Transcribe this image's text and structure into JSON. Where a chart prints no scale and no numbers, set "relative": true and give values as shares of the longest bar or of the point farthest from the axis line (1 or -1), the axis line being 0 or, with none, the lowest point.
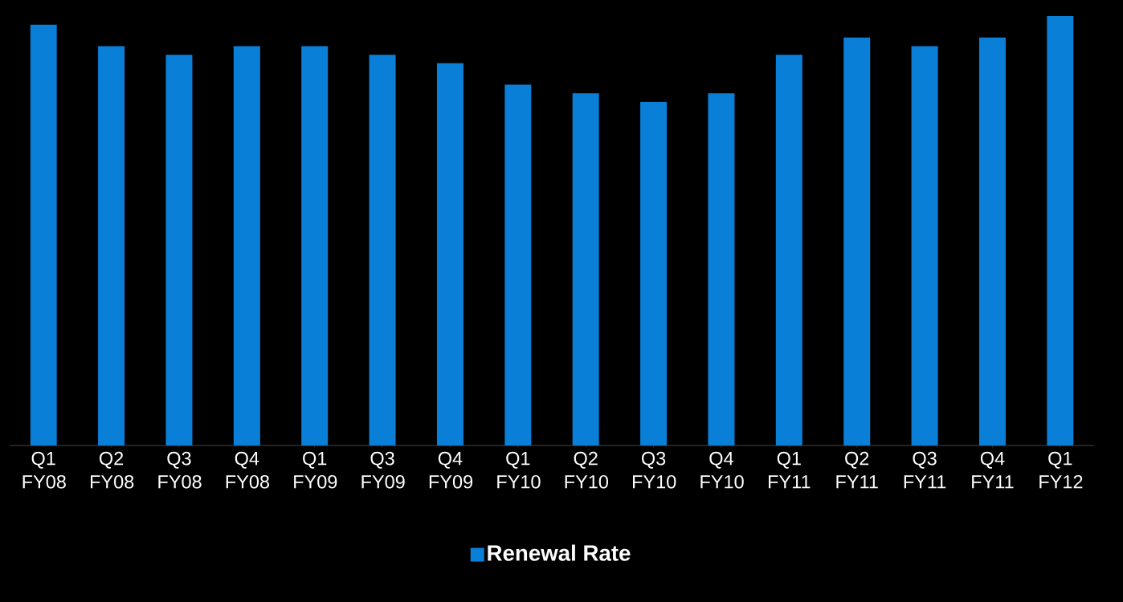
{
  "chart_data": {
    "type": "bar",
    "relative": true,
    "categories": [
      "Q1 FY08",
      "Q2 FY08",
      "Q3 FY08",
      "Q4 FY08",
      "Q1 FY09",
      "Q3 FY09",
      "Q4 FY09",
      "Q1 FY10",
      "Q2 FY10",
      "Q3 FY10",
      "Q4 FY10",
      "Q1 FY11",
      "Q2 FY11",
      "Q3 FY11",
      "Q4 FY11",
      "Q1 FY12"
    ],
    "series": [
      {
        "name": "Renewal Rate",
        "color": "#0a7fd8",
        "values": [
          0.98,
          0.93,
          0.91,
          0.93,
          0.93,
          0.91,
          0.89,
          0.84,
          0.82,
          0.8,
          0.82,
          0.91,
          0.95,
          0.93,
          0.95,
          1
        ]
      }
    ],
    "legend": "bottom"
  }
}
